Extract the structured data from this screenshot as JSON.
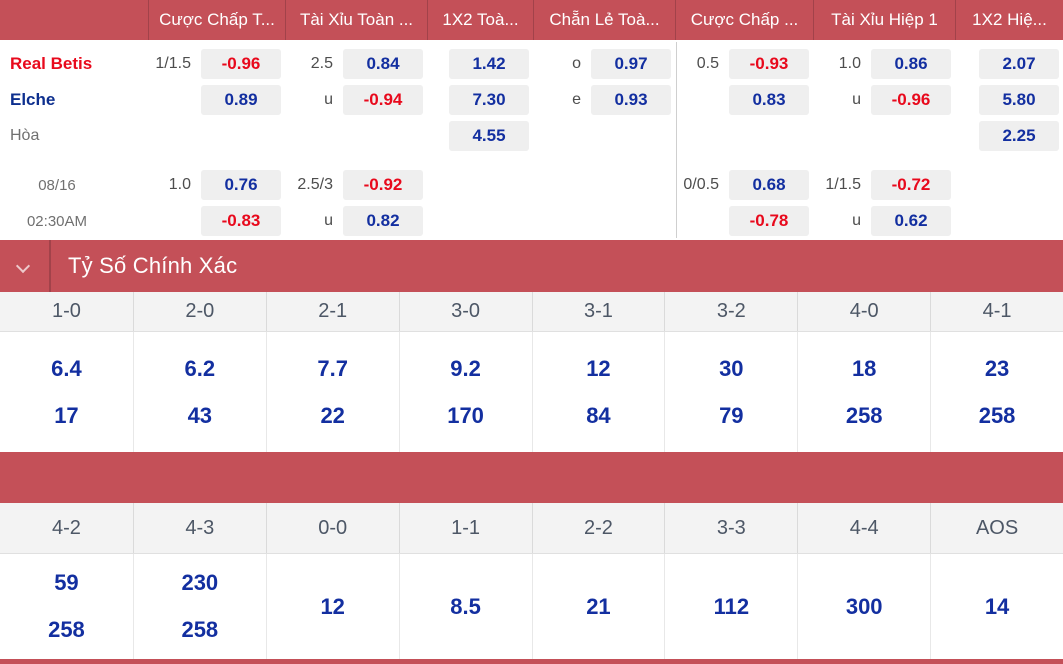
{
  "colors": {
    "header_red": "#c45058",
    "divider_dark_red": "#a2424a",
    "value_blue": "#132fa0",
    "value_red": "#e8091c",
    "team_away_blue": "#0d2f8e",
    "pill_bg": "#efefef"
  },
  "odds": {
    "headers": [
      "",
      "Cược Chấp T...",
      "Tài Xỉu Toàn ...",
      "1X2 Toà...",
      "Chẵn Lẻ Toà...",
      "Cược Chấp ...",
      "Tài Xỉu Hiệp 1",
      "1X2 Hiệ..."
    ],
    "match": {
      "home_team": "Real Betis",
      "away_team": "Elche",
      "draw_label": "Hòa",
      "date": "08/16",
      "time": "02:30AM"
    },
    "rows": [
      {
        "name": "Real Betis",
        "cells": [
          {
            "label": "1/1.5",
            "value": "-0.96"
          },
          {
            "label": "2.5",
            "value": "0.84"
          },
          {
            "value": "1.42"
          },
          {
            "label": "o",
            "value": "0.97"
          },
          {
            "label": "0.5",
            "value": "-0.93"
          },
          {
            "label": "1.0",
            "value": "0.86"
          },
          {
            "value": "2.07"
          }
        ]
      },
      {
        "name": "Elche",
        "cells": [
          {
            "value": "0.89"
          },
          {
            "label": "u",
            "value": "-0.94"
          },
          {
            "value": "7.30"
          },
          {
            "label": "e",
            "value": "0.93"
          },
          {
            "value": "0.83"
          },
          {
            "label": "u",
            "value": "-0.96"
          },
          {
            "value": "5.80"
          }
        ]
      },
      {
        "name": "Hòa",
        "cells": [
          null,
          null,
          {
            "value": "4.55"
          },
          null,
          null,
          null,
          {
            "value": "2.25"
          }
        ]
      },
      {
        "name": "08/16",
        "cells": [
          {
            "label": "1.0",
            "value": "0.76"
          },
          {
            "label": "2.5/3",
            "value": "-0.92"
          },
          null,
          null,
          {
            "label": "0/0.5",
            "value": "0.68"
          },
          {
            "label": "1/1.5",
            "value": "-0.72"
          },
          null
        ]
      },
      {
        "name": "02:30AM",
        "cells": [
          {
            "value": "-0.83"
          },
          {
            "label": "u",
            "value": "0.82"
          },
          null,
          null,
          {
            "value": "-0.78"
          },
          {
            "label": "u",
            "value": "0.62"
          },
          null
        ]
      }
    ]
  },
  "correct_score": {
    "title": "Tỷ Số Chính Xác",
    "sections": [
      {
        "scores": [
          "1-0",
          "2-0",
          "2-1",
          "3-0",
          "3-1",
          "3-2",
          "4-0",
          "4-1"
        ],
        "odds": [
          [
            "6.4",
            "17"
          ],
          [
            "6.2",
            "43"
          ],
          [
            "7.7",
            "22"
          ],
          [
            "9.2",
            "170"
          ],
          [
            "12",
            "84"
          ],
          [
            "30",
            "79"
          ],
          [
            "18",
            "258"
          ],
          [
            "23",
            "258"
          ]
        ]
      },
      {
        "scores": [
          "4-2",
          "4-3",
          "0-0",
          "1-1",
          "2-2",
          "3-3",
          "4-4",
          "AOS"
        ],
        "odds": [
          [
            "59",
            "258"
          ],
          [
            "230",
            "258"
          ],
          [
            "12"
          ],
          [
            "8.5"
          ],
          [
            "21"
          ],
          [
            "112"
          ],
          [
            "300"
          ],
          [
            "14"
          ]
        ]
      }
    ]
  }
}
